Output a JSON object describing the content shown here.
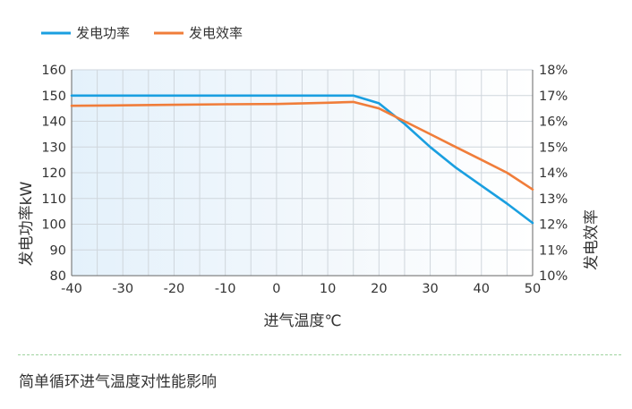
{
  "chart_data": {
    "type": "line",
    "xlabel": "进气温度℃",
    "ylabel_left": "发电功率kW",
    "ylabel_right": "发电效率",
    "xlim": [
      -40,
      50
    ],
    "xticks": [
      "-40",
      "-30",
      "-20",
      "-10",
      "0",
      "10",
      "20",
      "30",
      "40",
      "50"
    ],
    "ylim_left": [
      80,
      160
    ],
    "yticks_left": [
      "80",
      "90",
      "100",
      "110",
      "120",
      "130",
      "140",
      "150",
      "160"
    ],
    "ylim_right": [
      10,
      18
    ],
    "yticks_right": [
      "10%",
      "11%",
      "12%",
      "13%",
      "14%",
      "15%",
      "16%",
      "17%",
      "18%"
    ],
    "grid": true,
    "legend_position": "top-left",
    "series": [
      {
        "name": "发电功率",
        "axis": "left",
        "color": "#1a9fe0",
        "x": [
          -40,
          -30,
          -20,
          -10,
          0,
          10,
          15,
          20,
          25,
          30,
          35,
          40,
          45,
          50
        ],
        "y": [
          150,
          150,
          150,
          150,
          150,
          150,
          150,
          147,
          139,
          130,
          122,
          115,
          108,
          100.5
        ]
      },
      {
        "name": "发电效率",
        "axis": "right",
        "color": "#f07d3a",
        "x": [
          -40,
          -30,
          -20,
          -10,
          0,
          10,
          15,
          20,
          25,
          30,
          35,
          40,
          45,
          50
        ],
        "y": [
          16.6,
          16.62,
          16.64,
          16.66,
          16.67,
          16.72,
          16.75,
          16.5,
          16.0,
          15.5,
          15.0,
          14.5,
          14.0,
          13.35
        ]
      }
    ]
  },
  "caption": "简单循环进气温度对性能影响"
}
